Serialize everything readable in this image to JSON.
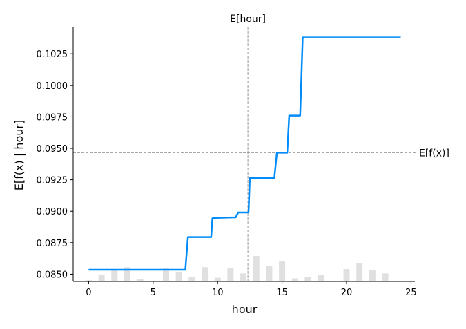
{
  "chart_data": {
    "type": "line",
    "xlabel": "hour",
    "ylabel": "E[f(x) | hour]",
    "xlim": [
      -1.2,
      25.3
    ],
    "ylim": [
      0.08442,
      0.10465
    ],
    "x_ticks": [
      0,
      5,
      10,
      15,
      20,
      25
    ],
    "x_tick_labels": [
      "0",
      "5",
      "10",
      "15",
      "20",
      "25"
    ],
    "y_ticks": [
      0.085,
      0.0875,
      0.09,
      0.0925,
      0.095,
      0.0975,
      0.1,
      0.1025
    ],
    "y_tick_labels": [
      "0.0850",
      "0.0875",
      "0.0900",
      "0.0925",
      "0.0950",
      "0.0975",
      "0.1000",
      "0.1025"
    ],
    "series": [
      {
        "color": "#008bfb",
        "x": [
          0,
          7.5,
          7.7,
          9.5,
          9.6,
          9.8,
          11.4,
          11.6,
          12.4,
          12.5,
          14.4,
          14.6,
          15.4,
          15.55,
          16.4,
          16.6,
          24.2
        ],
        "y": [
          0.08535,
          0.08535,
          0.08795,
          0.08795,
          0.08945,
          0.08948,
          0.08952,
          0.0899,
          0.0899,
          0.09265,
          0.09265,
          0.09465,
          0.09465,
          0.0976,
          0.0976,
          0.10385,
          0.10385
        ]
      }
    ],
    "histogram": {
      "color": "#e0e0e0",
      "x": [
        0,
        1,
        2,
        3,
        4,
        5,
        6,
        7,
        8,
        9,
        10,
        11,
        12,
        13,
        14,
        15,
        16,
        17,
        18,
        19,
        20,
        21,
        22,
        23
      ],
      "heights": [
        2,
        10,
        20,
        23,
        4,
        1,
        21,
        15,
        7,
        23,
        6,
        21,
        13,
        41,
        25,
        33,
        5,
        7,
        11,
        1,
        20,
        29,
        18,
        13
      ]
    },
    "reference_lines": {
      "expected_value": {
        "y": 0.09465,
        "label": "E[f(x)]"
      },
      "expected_feature": {
        "x": 12.35,
        "label": "E[hour]"
      }
    },
    "grid": false
  }
}
